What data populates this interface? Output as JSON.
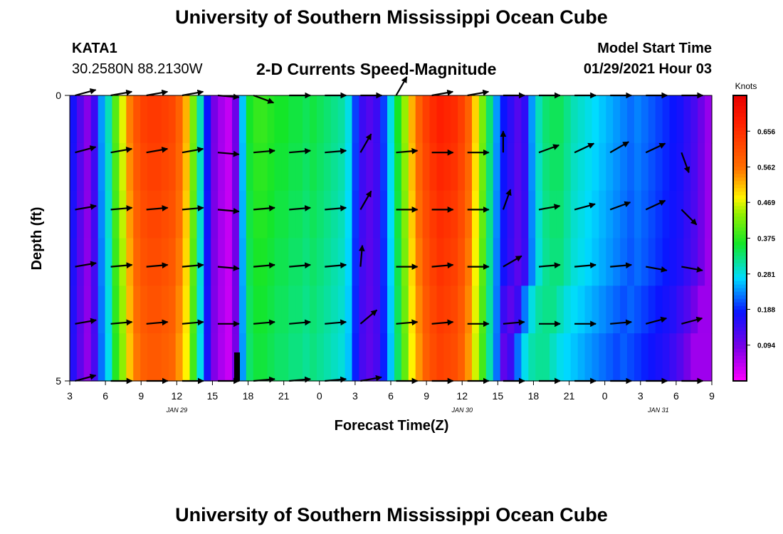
{
  "header": {
    "title": "University of Southern Mississippi Ocean Cube",
    "station": "KATA1",
    "coords": "30.2580N 88.2130W",
    "subtitle": "2-D Currents Speed-Magnitude",
    "model_label": "Model Start Time",
    "model_time": "01/29/2021 Hour 03"
  },
  "footer": {
    "title": "University of Southern Mississippi Ocean Cube"
  },
  "chart_data": {
    "type": "heatmap",
    "title": "2-D Currents Speed-Magnitude",
    "xlabel": "Forecast Time(Z)",
    "ylabel": "Depth (ft)",
    "x_ticks": [
      "3",
      "6",
      "9",
      "12",
      "15",
      "18",
      "21",
      "0",
      "3",
      "6",
      "9",
      "12",
      "15",
      "18",
      "21",
      "0",
      "3",
      "6",
      "9"
    ],
    "date_labels": [
      {
        "label": "JAN 29",
        "tick_index": 3
      },
      {
        "label": "JAN 30",
        "tick_index": 11
      },
      {
        "label": "JAN 31",
        "tick_index": 16.5
      }
    ],
    "y_ticks": [
      "0",
      "5"
    ],
    "ylim": [
      0,
      5
    ],
    "colorbar": {
      "title": "Knots",
      "range": [
        0.0,
        0.75
      ],
      "tick_values": [
        0.094,
        0.188,
        0.281,
        0.375,
        0.469,
        0.562,
        0.656
      ],
      "tick_labels": [
        "0.094",
        "0.188",
        "0.281",
        "0.375",
        "0.469",
        "0.562",
        "0.656"
      ]
    },
    "speed_profile_knots": [
      0.17,
      0.12,
      0.08,
      0.14,
      0.24,
      0.3,
      0.4,
      0.47,
      0.55,
      0.6,
      0.63,
      0.64,
      0.64,
      0.63,
      0.62,
      0.58,
      0.52,
      0.42,
      0.3,
      0.18,
      0.09,
      0.06,
      0.04,
      0.1,
      0.26,
      0.36,
      0.38,
      0.38,
      0.37,
      0.36,
      0.36,
      0.35,
      0.35,
      0.34,
      0.35,
      0.34,
      0.33,
      0.32,
      0.31,
      0.28,
      0.2,
      0.14,
      0.12,
      0.14,
      0.2,
      0.28,
      0.36,
      0.44,
      0.52,
      0.58,
      0.63,
      0.66,
      0.68,
      0.67,
      0.66,
      0.63,
      0.58,
      0.5,
      0.42,
      0.33,
      0.24,
      0.18,
      0.15,
      0.12,
      0.15,
      0.24,
      0.3,
      0.33,
      0.34,
      0.34,
      0.32,
      0.3,
      0.29,
      0.28,
      0.27,
      0.26,
      0.25,
      0.24,
      0.23,
      0.22,
      0.23,
      0.22,
      0.21,
      0.2,
      0.19,
      0.18,
      0.17,
      0.15,
      0.13,
      0.1,
      0.07
    ],
    "vector_rows": [
      0,
      1,
      2,
      3,
      4,
      5
    ],
    "vector_cols": [
      0.5,
      1.5,
      2.5,
      3.5,
      4.5,
      5.5,
      6.5,
      7.5,
      8.5,
      9.5,
      10.5,
      11.5,
      12.5,
      13.5,
      14.5,
      15.5,
      16.5,
      17.5
    ],
    "vector_directions_deg": [
      [
        -15,
        -10,
        -10,
        -10,
        5,
        20,
        0,
        0,
        0,
        -60,
        -10,
        -10,
        0,
        0,
        0,
        0,
        0,
        0
      ],
      [
        -15,
        -10,
        -10,
        -10,
        5,
        -5,
        -5,
        -5,
        -60,
        -5,
        0,
        0,
        -90,
        -20,
        -25,
        -30,
        -25,
        70
      ],
      [
        -10,
        -5,
        -5,
        -5,
        5,
        -5,
        -5,
        -5,
        -60,
        0,
        0,
        0,
        -70,
        -10,
        -15,
        -20,
        -25,
        45
      ],
      [
        -10,
        -5,
        -5,
        -5,
        5,
        -5,
        -5,
        -5,
        -85,
        0,
        -5,
        0,
        -30,
        -5,
        -5,
        -5,
        10,
        10
      ],
      [
        -10,
        -5,
        -5,
        -5,
        0,
        -5,
        -5,
        -5,
        -40,
        -5,
        -5,
        0,
        -5,
        0,
        0,
        -5,
        -15,
        -15
      ],
      [
        -15,
        0,
        0,
        0,
        0,
        -5,
        -5,
        -5,
        -10,
        0,
        0,
        0,
        0,
        0,
        0,
        0,
        0,
        0
      ]
    ]
  }
}
